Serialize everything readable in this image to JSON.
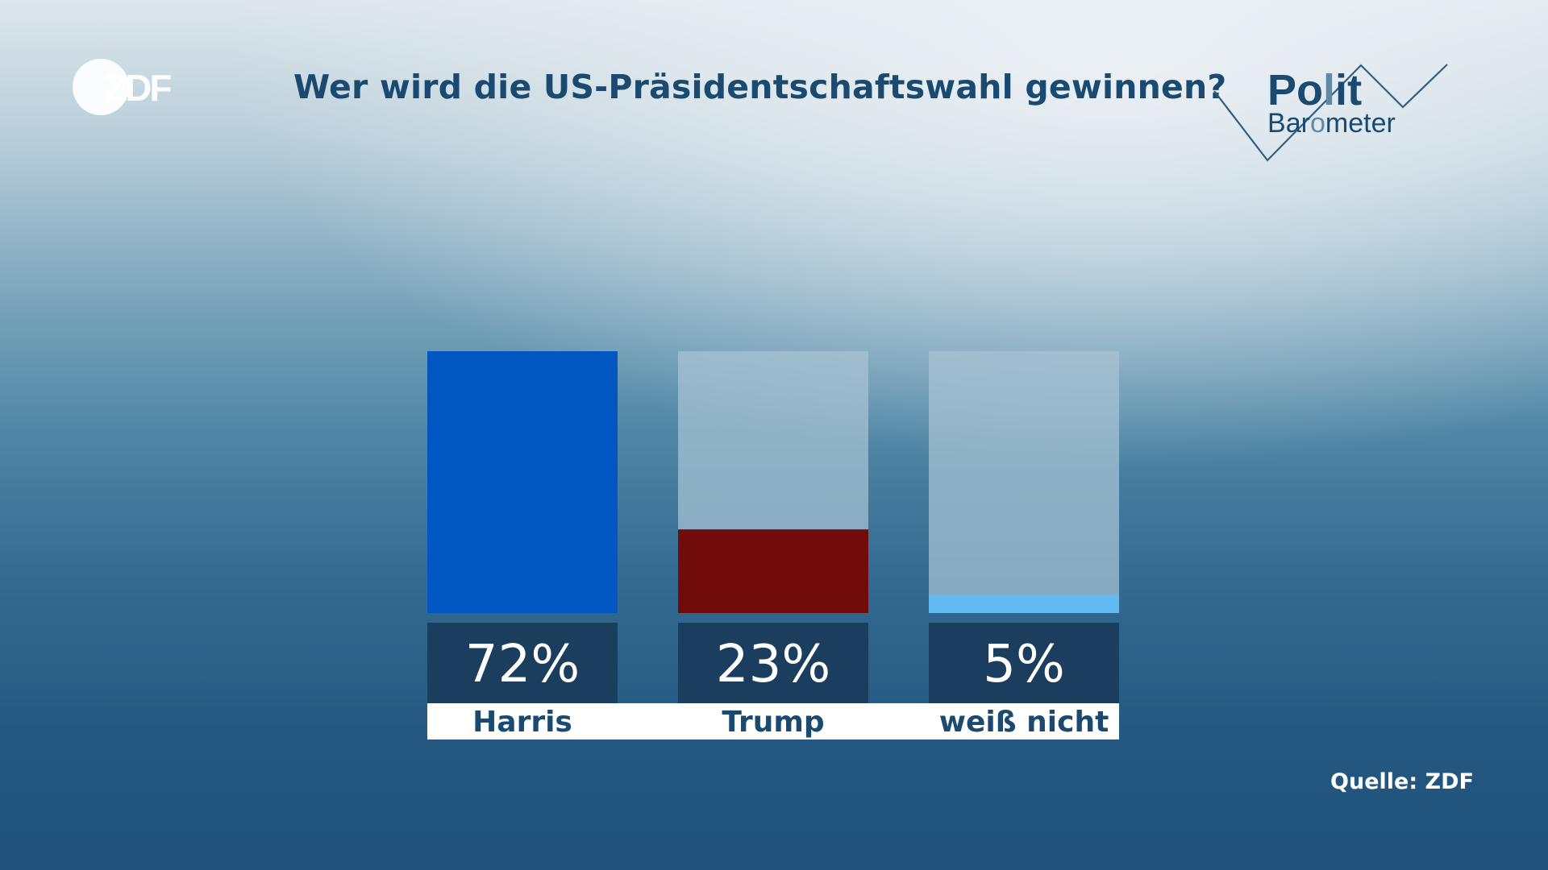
{
  "header": {
    "title": "Wer wird die US-Präsidentschaftswahl gewinnen?",
    "logo_text": "ZDF"
  },
  "brand": {
    "line1": "Polit",
    "line2": "Barometer"
  },
  "source": "Quelle: ZDF",
  "colors": {
    "text_dark": "#1a4a70",
    "track": "#a9c4d4",
    "value_box": "#1b3d5e",
    "label_box": "#ffffff"
  },
  "chart_data": {
    "type": "bar",
    "title": "Wer wird die US-Präsidentschaftswahl gewinnen?",
    "categories": [
      "Harris",
      "Trump",
      "weiß nicht"
    ],
    "values": [
      72,
      23,
      5
    ],
    "value_labels": [
      "72%",
      "23%",
      "5%"
    ],
    "colors": [
      "#0057c2",
      "#720c0c",
      "#62baf0"
    ],
    "ylim": [
      0,
      72
    ],
    "unit": "%",
    "grid": false,
    "legend": "none"
  }
}
